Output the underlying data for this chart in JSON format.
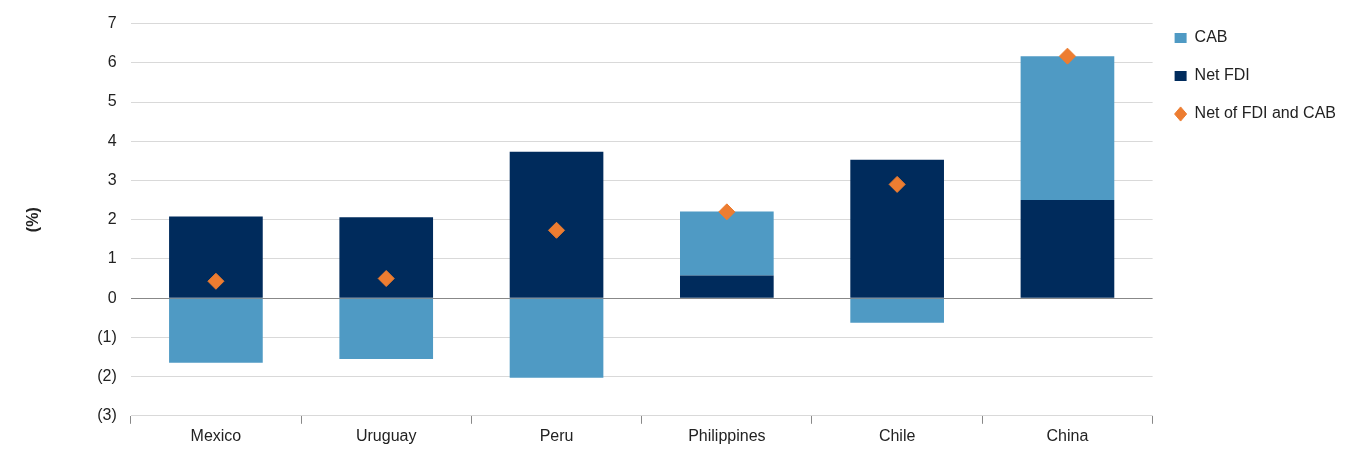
{
  "chart_data": {
    "type": "bar",
    "stacked": true,
    "ylabel": "(%)",
    "categories": [
      "Mexico",
      "Uruguay",
      "Peru",
      "Philippines",
      "Chile",
      "China"
    ],
    "series": [
      {
        "name": "Net FDI",
        "color": "#002b5c",
        "values": [
          2.08,
          2.06,
          3.73,
          0.58,
          3.53,
          2.5
        ]
      },
      {
        "name": "CAB",
        "color": "#4f9ac4",
        "values": [
          -1.65,
          -1.55,
          -2.03,
          1.63,
          -0.63,
          3.67
        ]
      },
      {
        "name": "Net of FDI and CAB",
        "type": "scatter",
        "color": "#ed7d31",
        "x": [
          "Mexico",
          "Uruguay",
          "Peru",
          "Philippines",
          "Chile",
          "China"
        ],
        "values": [
          0.43,
          0.5,
          1.73,
          2.2,
          2.9,
          6.17
        ]
      }
    ],
    "ylim": [
      -3,
      7
    ],
    "yticks": [
      {
        "value": -3,
        "label": "(3)"
      },
      {
        "value": -2,
        "label": "(2)"
      },
      {
        "value": -1,
        "label": "(1)"
      },
      0,
      1,
      2,
      3,
      4,
      5,
      6,
      7
    ],
    "grid": "y",
    "legend": "top right",
    "marker": "diamond"
  }
}
